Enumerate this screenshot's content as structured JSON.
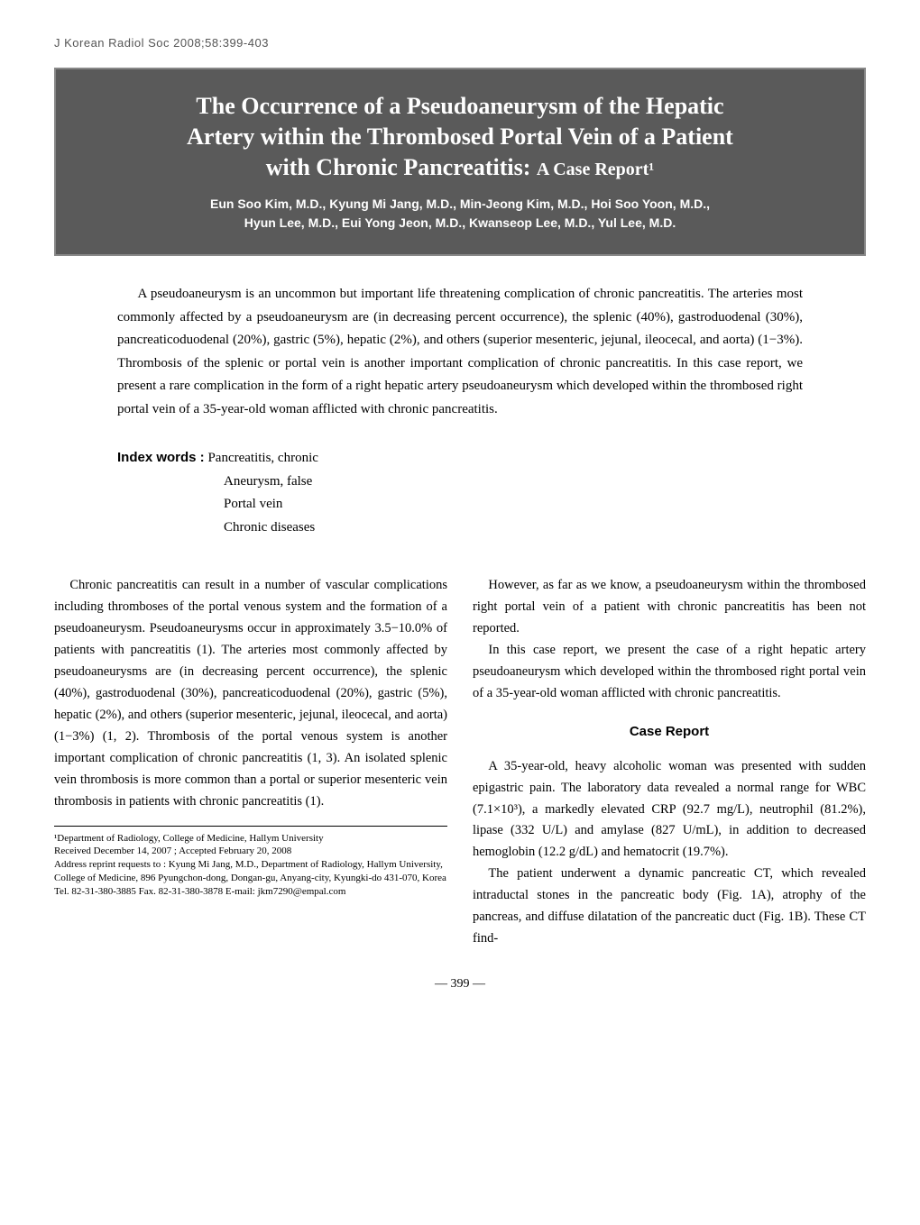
{
  "journal_header": "J Korean Radiol Soc 2008;58:399-403",
  "title_line1": "The Occurrence of a Pseudoaneurysm of the Hepatic",
  "title_line2": "Artery within the Thrombosed Portal Vein of a Patient",
  "title_line3": "with Chronic Pancreatitis:",
  "subtitle": "A Case Report¹",
  "authors_line1": "Eun Soo Kim, M.D., Kyung Mi Jang, M.D., Min-Jeong Kim, M.D., Hoi Soo Yoon, M.D.,",
  "authors_line2": "Hyun Lee, M.D., Eui Yong Jeon, M.D., Kwanseop Lee, M.D., Yul Lee, M.D.",
  "abstract": "A pseudoaneurysm is an uncommon but important life threatening complication of chronic pancreatitis. The arteries most commonly affected by a pseudoaneurysm are (in decreasing percent occurrence), the splenic (40%), gastroduodenal (30%), pancreaticoduodenal (20%), gastric (5%), hepatic (2%), and others (superior mesenteric, jejunal, ileocecal, and aorta) (1−3%). Thrombosis of the splenic or portal vein is another important complication of chronic pancreatitis. In this case report, we present a rare complication in the form of a right hepatic artery pseudoaneurysm which developed within the thrombosed right portal vein of a 35-year-old woman afflicted with chronic pancreatitis.",
  "index_label": "Index words :",
  "index_items": [
    "Pancreatitis, chronic",
    "Aneurysm, false",
    "Portal vein",
    "Chronic diseases"
  ],
  "left_col": {
    "p1": "Chronic pancreatitis can result in a number of vascular complications including thromboses of the portal venous system and the formation of a pseudoaneurysm. Pseudoaneurysms occur in approximately 3.5−10.0% of patients with pancreatitis (1). The arteries most commonly affected by pseudoaneurysms are (in decreasing percent occurrence), the splenic (40%), gastroduodenal (30%), pancreaticoduodenal (20%), gastric (5%), hepatic (2%), and others (superior mesenteric, jejunal, ileocecal, and aorta) (1−3%) (1, 2). Thrombosis of the portal venous system is another important complication of chronic pancreatitis (1, 3). An isolated splenic vein thrombosis is more common than a portal or superior mesenteric vein thrombosis in patients with chronic pancreatitis (1)."
  },
  "footnote": {
    "dept": "¹Department of Radiology, College of Medicine, Hallym University",
    "received": "Received December 14, 2007 ; Accepted February 20, 2008",
    "address": "Address reprint requests to : Kyung Mi Jang, M.D., Department of Radiology, Hallym University, College of Medicine, 896 Pyungchon-dong, Dongan-gu, Anyang-city, Kyungki-do 431-070, Korea",
    "contact": "Tel. 82-31-380-3885   Fax. 82-31-380-3878   E-mail: jkm7290@empal.com"
  },
  "right_col": {
    "p1": "However, as far as we know, a pseudoaneurysm within the thrombosed right portal vein of a patient with chronic pancreatitis has been not reported.",
    "p2": "In this case report, we present the case of a right hepatic artery pseudoaneurysm which developed within the thrombosed right portal vein of a 35-year-old woman afflicted with chronic pancreatitis.",
    "heading": "Case Report",
    "p3": "A 35-year-old, heavy alcoholic woman was presented with sudden epigastric pain. The laboratory data revealed a normal range for WBC (7.1×10³), a markedly elevated CRP (92.7 mg/L), neutrophil (81.2%), lipase (332 U/L) and amylase (827 U/mL), in addition to decreased hemoglobin (12.2 g/dL) and hematocrit (19.7%).",
    "p4": "The patient underwent a dynamic pancreatic CT, which revealed intraductal stones in the pancreatic body (Fig. 1A), atrophy of the pancreas, and diffuse dilatation of the pancreatic duct (Fig. 1B). These CT find-"
  },
  "page_num": "— 399 —"
}
